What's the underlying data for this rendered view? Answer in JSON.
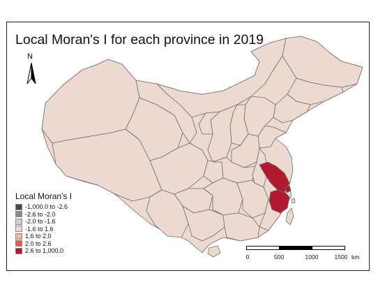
{
  "map": {
    "title": "Local Moran's I for each province in 2019",
    "north_arrow": "N",
    "colors": {
      "background": "#ffffff",
      "province_default": "#ecdad0",
      "province_border": "#6b6b6b",
      "hotspot": "#b1192c"
    },
    "hotspot_provinces": [
      "Jiangsu",
      "Zhejiang",
      "Shanghai"
    ]
  },
  "legend": {
    "title": "Local Moran's I",
    "items": [
      {
        "label": "-1,000.0 to -2.6",
        "color": "#474747"
      },
      {
        "label": "-2.6 to -2.0",
        "color": "#8a8a8a"
      },
      {
        "label": "-2.0 to -1.6",
        "color": "#cdcdcd"
      },
      {
        "label": "-1.6 to 1.6",
        "color": "#ecdad0"
      },
      {
        "label": "1.6 to 2.0",
        "color": "#f5b596"
      },
      {
        "label": "2.0 to 2.6",
        "color": "#df5a48"
      },
      {
        "label": "2.6 to 1,000.0",
        "color": "#b1192c"
      }
    ]
  },
  "scalebar": {
    "ticks": [
      "0",
      "500",
      "1000",
      "1500"
    ],
    "unit": "km"
  }
}
